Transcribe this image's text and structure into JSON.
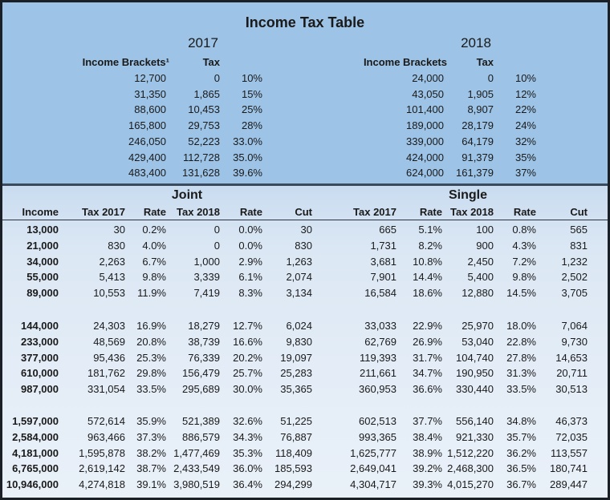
{
  "title": "Income Tax Table",
  "brackets": {
    "2017": {
      "year": "2017",
      "headers": [
        "Income Brackets¹",
        "Tax"
      ],
      "rows": [
        [
          "12,700",
          "0",
          "10%"
        ],
        [
          "31,350",
          "1,865",
          "15%"
        ],
        [
          "88,600",
          "10,453",
          "25%"
        ],
        [
          "165,800",
          "29,753",
          "28%"
        ],
        [
          "246,050",
          "52,223",
          "33.0%"
        ],
        [
          "429,400",
          "112,728",
          "35.0%"
        ],
        [
          "483,400",
          "131,628",
          "39.6%"
        ]
      ]
    },
    "2018": {
      "year": "2018",
      "headers": [
        "Income Brackets",
        "Tax"
      ],
      "rows": [
        [
          "24,000",
          "0",
          "10%"
        ],
        [
          "43,050",
          "1,905",
          "12%"
        ],
        [
          "101,400",
          "8,907",
          "22%"
        ],
        [
          "189,000",
          "28,179",
          "24%"
        ],
        [
          "339,000",
          "64,179",
          "32%"
        ],
        [
          "424,000",
          "91,379",
          "35%"
        ],
        [
          "624,000",
          "161,379",
          "37%"
        ]
      ]
    }
  },
  "comparison": {
    "joint_label": "Joint",
    "single_label": "Single",
    "headers": [
      "Income",
      "Tax 2017",
      "Rate",
      "Tax 2018",
      "Rate",
      "Cut",
      "Tax 2017",
      "Rate",
      "Tax 2018",
      "Rate",
      "Cut"
    ],
    "groups": [
      [
        [
          "13,000",
          "30",
          "0.2%",
          "0",
          "0.0%",
          "30",
          "665",
          "5.1%",
          "100",
          "0.8%",
          "565"
        ],
        [
          "21,000",
          "830",
          "4.0%",
          "0",
          "0.0%",
          "830",
          "1,731",
          "8.2%",
          "900",
          "4.3%",
          "831"
        ],
        [
          "34,000",
          "2,263",
          "6.7%",
          "1,000",
          "2.9%",
          "1,263",
          "3,681",
          "10.8%",
          "2,450",
          "7.2%",
          "1,232"
        ],
        [
          "55,000",
          "5,413",
          "9.8%",
          "3,339",
          "6.1%",
          "2,074",
          "7,901",
          "14.4%",
          "5,400",
          "9.8%",
          "2,502"
        ],
        [
          "89,000",
          "10,553",
          "11.9%",
          "7,419",
          "8.3%",
          "3,134",
          "16,584",
          "18.6%",
          "12,880",
          "14.5%",
          "3,705"
        ]
      ],
      [
        [
          "144,000",
          "24,303",
          "16.9%",
          "18,279",
          "12.7%",
          "6,024",
          "33,033",
          "22.9%",
          "25,970",
          "18.0%",
          "7,064"
        ],
        [
          "233,000",
          "48,569",
          "20.8%",
          "38,739",
          "16.6%",
          "9,830",
          "62,769",
          "26.9%",
          "53,040",
          "22.8%",
          "9,730"
        ],
        [
          "377,000",
          "95,436",
          "25.3%",
          "76,339",
          "20.2%",
          "19,097",
          "119,393",
          "31.7%",
          "104,740",
          "27.8%",
          "14,653"
        ],
        [
          "610,000",
          "181,762",
          "29.8%",
          "156,479",
          "25.7%",
          "25,283",
          "211,661",
          "34.7%",
          "190,950",
          "31.3%",
          "20,711"
        ],
        [
          "987,000",
          "331,054",
          "33.5%",
          "295,689",
          "30.0%",
          "35,365",
          "360,953",
          "36.6%",
          "330,440",
          "33.5%",
          "30,513"
        ]
      ],
      [
        [
          "1,597,000",
          "572,614",
          "35.9%",
          "521,389",
          "32.6%",
          "51,225",
          "602,513",
          "37.7%",
          "556,140",
          "34.8%",
          "46,373"
        ],
        [
          "2,584,000",
          "963,466",
          "37.3%",
          "886,579",
          "34.3%",
          "76,887",
          "993,365",
          "38.4%",
          "921,330",
          "35.7%",
          "72,035"
        ],
        [
          "4,181,000",
          "1,595,878",
          "38.2%",
          "1,477,469",
          "35.3%",
          "118,409",
          "1,625,777",
          "38.9%",
          "1,512,220",
          "36.2%",
          "113,557"
        ],
        [
          "6,765,000",
          "2,619,142",
          "38.7%",
          "2,433,549",
          "36.0%",
          "185,593",
          "2,649,041",
          "39.2%",
          "2,468,300",
          "36.5%",
          "180,741"
        ],
        [
          "10,946,000",
          "4,274,818",
          "39.1%",
          "3,980,519",
          "36.4%",
          "294,299",
          "4,304,717",
          "39.3%",
          "4,015,270",
          "36.7%",
          "289,447"
        ]
      ]
    ]
  },
  "colors": {
    "top_panel": "#9dc3e6",
    "bottom_panel": "#dbe7f4",
    "border": "#1b1f26"
  }
}
